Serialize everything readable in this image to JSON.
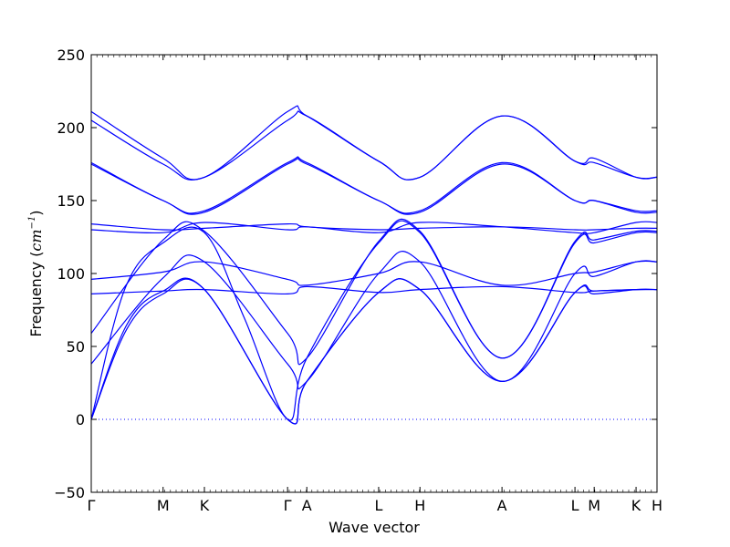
{
  "chart_data": {
    "type": "line",
    "title": "",
    "xlabel": "Wave vector",
    "ylabel": "Frequency (cm⁻¹)",
    "ylabel_text": "Frequency (",
    "ylabel_unit": "cm",
    "ylabel_exp": "−1",
    "ylabel_close": ")",
    "ylim": [
      -50,
      250
    ],
    "yticks": [
      -50,
      0,
      50,
      100,
      150,
      200,
      250
    ],
    "grid": false,
    "legend": "none",
    "line_color": "#0000ff",
    "zero_line_color": "#0000ff",
    "xlim": [
      0,
      1
    ],
    "xticks": [
      {
        "label": "Γ",
        "x": 0.0
      },
      {
        "label": "M",
        "x": 0.127
      },
      {
        "label": "K",
        "x": 0.2
      },
      {
        "label": "Γ",
        "x": 0.347
      },
      {
        "label": "A",
        "x": 0.381
      },
      {
        "label": "L",
        "x": 0.508
      },
      {
        "label": "H",
        "x": 0.581
      },
      {
        "label": "A",
        "x": 0.726
      },
      {
        "label": "L",
        "x": 0.855
      },
      {
        "label": "M",
        "x": 0.889
      },
      {
        "label": "K",
        "x": 0.963
      },
      {
        "label": "H",
        "x": 1.0
      }
    ],
    "series": [
      {
        "x": [
          0.0,
          0.063,
          0.127,
          0.2,
          0.347,
          0.381,
          0.508,
          0.581,
          0.726,
          0.855,
          0.889,
          0.963,
          1.0
        ],
        "values": [
          0,
          62,
          86,
          89,
          0,
          26,
          87,
          89,
          26,
          87,
          86,
          89,
          89
        ]
      },
      {
        "x": [
          0.0,
          0.063,
          0.127,
          0.2,
          0.347,
          0.381,
          0.508,
          0.581,
          0.726,
          0.855,
          0.889,
          0.963,
          1.0
        ],
        "values": [
          0,
          65,
          88,
          89,
          0,
          26,
          87,
          89,
          26,
          87,
          88,
          89,
          89
        ]
      },
      {
        "x": [
          0.0,
          0.06,
          0.127,
          0.2,
          0.27,
          0.347,
          0.381,
          0.508,
          0.581,
          0.726,
          0.855,
          0.889,
          0.963,
          1.0
        ],
        "values": [
          0,
          90,
          121,
          128,
          70,
          0,
          42,
          121,
          128,
          42,
          121,
          121,
          128,
          128
        ]
      },
      {
        "x": [
          0.0,
          0.127,
          0.2,
          0.347,
          0.381,
          0.508,
          0.581,
          0.726,
          0.855,
          0.889,
          0.963,
          1.0
        ],
        "values": [
          38,
          97,
          108,
          38,
          26,
          100,
          108,
          26,
          100,
          98,
          108,
          108
        ]
      },
      {
        "x": [
          0.0,
          0.127,
          0.2,
          0.347,
          0.381,
          0.508,
          0.581,
          0.726,
          0.855,
          0.889,
          0.963,
          1.0
        ],
        "values": [
          59,
          123,
          129,
          59,
          42,
          122,
          129,
          42,
          122,
          123,
          129,
          129
        ]
      },
      {
        "x": [
          0.0,
          0.127,
          0.2,
          0.347,
          0.381,
          0.508,
          0.581,
          0.726,
          0.855,
          0.889,
          0.963,
          1.0
        ],
        "values": [
          86,
          88,
          89,
          86,
          91,
          87,
          89,
          91,
          87,
          88,
          89,
          89
        ]
      },
      {
        "x": [
          0.0,
          0.127,
          0.2,
          0.347,
          0.381,
          0.508,
          0.581,
          0.726,
          0.855,
          0.889,
          0.963,
          1.0
        ],
        "values": [
          96,
          101,
          108,
          96,
          92,
          100,
          108,
          92,
          100,
          101,
          108,
          108
        ]
      },
      {
        "x": [
          0.0,
          0.127,
          0.2,
          0.347,
          0.381,
          0.508,
          0.581,
          0.726,
          0.855,
          0.889,
          0.963,
          1.0
        ],
        "values": [
          130,
          128,
          135,
          130,
          132,
          128,
          135,
          132,
          128,
          128,
          135,
          135
        ]
      },
      {
        "x": [
          0.0,
          0.127,
          0.2,
          0.347,
          0.381,
          0.508,
          0.581,
          0.726,
          0.855,
          0.889,
          0.963,
          1.0
        ],
        "values": [
          134,
          130,
          131,
          134,
          132,
          130,
          131,
          132,
          130,
          130,
          131,
          131
        ]
      },
      {
        "x": [
          0.0,
          0.127,
          0.2,
          0.347,
          0.381,
          0.508,
          0.581,
          0.726,
          0.855,
          0.889,
          0.963,
          1.0
        ],
        "values": [
          175,
          150,
          142,
          175,
          175,
          150,
          142,
          175,
          150,
          150,
          142,
          142
        ]
      },
      {
        "x": [
          0.0,
          0.127,
          0.2,
          0.347,
          0.381,
          0.508,
          0.581,
          0.726,
          0.855,
          0.889,
          0.963,
          1.0
        ],
        "values": [
          176,
          150,
          143,
          176,
          176,
          150,
          143,
          176,
          150,
          150,
          143,
          143
        ]
      },
      {
        "x": [
          0.0,
          0.127,
          0.2,
          0.347,
          0.381,
          0.508,
          0.581,
          0.726,
          0.855,
          0.889,
          0.963,
          1.0
        ],
        "values": [
          205,
          175,
          166,
          205,
          208,
          177,
          166,
          208,
          177,
          176,
          166,
          166
        ]
      },
      {
        "x": [
          0.0,
          0.127,
          0.2,
          0.347,
          0.381,
          0.508,
          0.581,
          0.726,
          0.855,
          0.889,
          0.963,
          1.0
        ],
        "values": [
          211,
          179,
          166,
          211,
          208,
          177,
          166,
          208,
          177,
          179,
          166,
          166
        ]
      }
    ]
  }
}
